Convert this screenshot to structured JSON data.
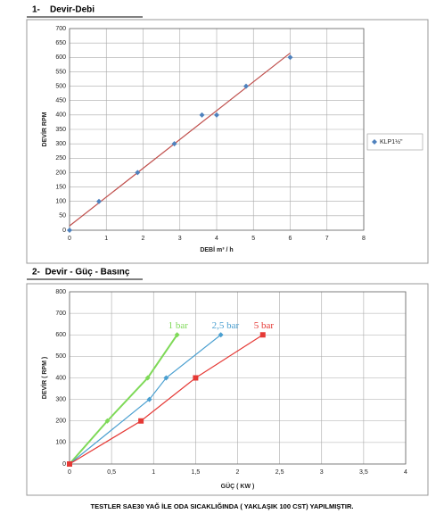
{
  "chart_data": [
    {
      "type": "scatter",
      "title": "1-    Devir-Debi",
      "x_label": "DEBİ m³ / h",
      "y_label": "DEVİR RPM",
      "xlim": [
        0,
        8
      ],
      "xticks": [
        0,
        1,
        2,
        3,
        4,
        5,
        6,
        7,
        8
      ],
      "ylim": [
        0,
        700
      ],
      "yticks": [
        0,
        50,
        100,
        150,
        200,
        250,
        300,
        350,
        400,
        450,
        500,
        550,
        600,
        650,
        700
      ],
      "grid": true,
      "legend": "right",
      "series": [
        {
          "name": "KLP1½\"",
          "color": "#4f81bd",
          "marker": "diamond",
          "x": [
            0,
            0.8,
            1.85,
            2.85,
            3.6,
            4,
            4.8,
            6
          ],
          "values": [
            0,
            100,
            200,
            300,
            400,
            400,
            500,
            600
          ]
        }
      ],
      "trendline": {
        "color": "#c0504d",
        "x": [
          0,
          6
        ],
        "values": [
          15,
          615
        ]
      }
    },
    {
      "type": "line",
      "title": "2-  Devir - Güç - Basınç",
      "x_label": "GÜÇ ( KW )",
      "y_label": "DEVİR ( RPM )",
      "xlim": [
        0,
        4
      ],
      "xticks": [
        0,
        {
          "value": 0.5,
          "label": "0,5"
        },
        1,
        {
          "value": 1.5,
          "label": "1,5"
        },
        2,
        {
          "value": 2.5,
          "label": "2,5"
        },
        3,
        {
          "value": 3.5,
          "label": "3,5"
        },
        4
      ],
      "ylim": [
        0,
        800
      ],
      "yticks": [
        0,
        100,
        200,
        300,
        400,
        500,
        600,
        700,
        800
      ],
      "grid": true,
      "legend": "line-end",
      "series": [
        {
          "name": "1 bar",
          "color": "#7ed957",
          "marker": "diamond",
          "x": [
            0,
            0.45,
            0.93,
            1.28
          ],
          "values": [
            0,
            200,
            400,
            600
          ]
        },
        {
          "name": "2,5 bar",
          "color": "#4a9fd0",
          "marker": "diamond",
          "x": [
            0,
            0.95,
            1.15,
            1.8
          ],
          "values": [
            0,
            300,
            400,
            600
          ]
        },
        {
          "name": "5 bar",
          "color": "#e53935",
          "marker": "square",
          "x": [
            0,
            0.85,
            1.5,
            2.3
          ],
          "values": [
            0,
            200,
            400,
            600
          ]
        }
      ]
    }
  ],
  "footer": "TESTLER SAE30 YAĞ İLE ODA SICAKLIĞINDA ( YAKLAŞIK 100 CST) YAPILMIŞTIR."
}
